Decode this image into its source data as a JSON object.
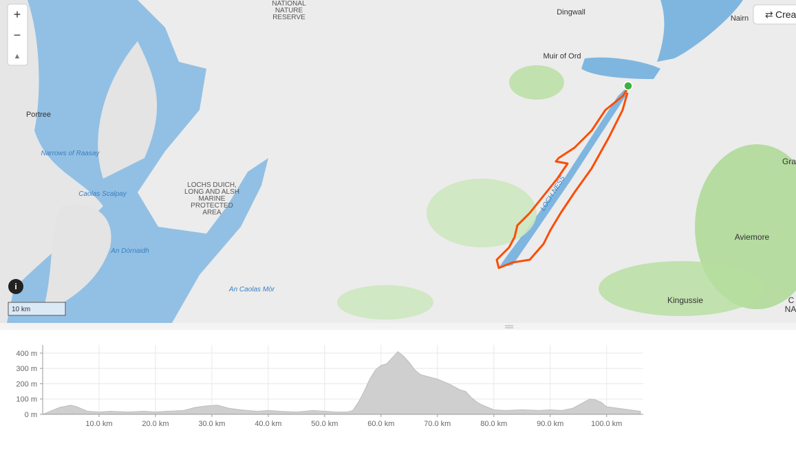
{
  "controls": {
    "zoom_in": "+",
    "zoom_out": "−",
    "compass": "▲",
    "info": "i",
    "scale": "10 km",
    "create": "Crea"
  },
  "map": {
    "labels": [
      {
        "lines": [
          "NATIONAL",
          "NATURE",
          "RESERVE"
        ]
      },
      {
        "lines": [
          "Dingwall"
        ]
      },
      {
        "lines": [
          "Nairn"
        ]
      },
      {
        "lines": [
          "Muir of Ord"
        ]
      },
      {
        "lines": [
          "Portree"
        ]
      },
      {
        "lines": [
          "Narrows of Raasay"
        ]
      },
      {
        "lines": [
          "Caolas Scalpay"
        ]
      },
      {
        "lines": [
          "LOCHS DUICH,",
          "LONG AND ALSH",
          "MARINE",
          "PROTECTED",
          "AREA"
        ]
      },
      {
        "lines": [
          "An Dòrnaidh"
        ]
      },
      {
        "lines": [
          "An Caolas Mòr"
        ]
      },
      {
        "lines": [
          "Gra"
        ]
      },
      {
        "lines": [
          "Aviemore"
        ]
      },
      {
        "lines": [
          "Kingussie"
        ]
      },
      {
        "lines": [
          "C"
        ]
      },
      {
        "lines": [
          "NA"
        ]
      },
      {
        "lines": [
          "LOCH NESS"
        ]
      }
    ]
  },
  "chart_data": {
    "type": "area",
    "color": "#cfcfcf",
    "x": [
      0,
      1,
      3,
      5,
      6,
      8,
      10,
      12,
      15,
      18,
      20,
      22,
      25,
      27,
      29,
      31,
      33,
      35,
      38,
      40,
      42,
      45,
      48,
      50,
      52,
      54,
      55,
      56,
      57,
      58,
      59,
      60,
      61,
      62,
      63,
      64,
      65,
      66,
      67,
      68,
      70,
      72,
      74,
      75,
      76,
      77,
      78,
      80,
      82,
      85,
      88,
      90,
      92,
      94,
      96,
      97,
      98,
      99,
      100,
      102,
      104,
      106
    ],
    "values": [
      0,
      15,
      45,
      60,
      50,
      20,
      15,
      20,
      15,
      20,
      15,
      20,
      25,
      45,
      55,
      60,
      40,
      30,
      20,
      25,
      20,
      15,
      25,
      20,
      15,
      15,
      25,
      80,
      150,
      230,
      290,
      320,
      330,
      370,
      410,
      380,
      340,
      290,
      260,
      250,
      230,
      200,
      160,
      150,
      110,
      80,
      60,
      30,
      25,
      30,
      25,
      30,
      25,
      40,
      80,
      100,
      95,
      80,
      50,
      40,
      30,
      20
    ],
    "xlim": [
      0,
      106.5
    ],
    "ylim": [
      0,
      440
    ],
    "xticks": [
      {
        "value": 10,
        "label": "10.0 km"
      },
      {
        "value": 20,
        "label": "20.0 km"
      },
      {
        "value": 30,
        "label": "30.0 km"
      },
      {
        "value": 40,
        "label": "40.0 km"
      },
      {
        "value": 50,
        "label": "50.0 km"
      },
      {
        "value": 60,
        "label": "60.0 km"
      },
      {
        "value": 70,
        "label": "70.0 km"
      },
      {
        "value": 80,
        "label": "80.0 km"
      },
      {
        "value": 90,
        "label": "90.0 km"
      },
      {
        "value": 100,
        "label": "100.0 km"
      }
    ],
    "yticks": [
      {
        "value": 0,
        "label": "0 m"
      },
      {
        "value": 100,
        "label": "100 m"
      },
      {
        "value": 200,
        "label": "200 m"
      },
      {
        "value": 300,
        "label": "300 m"
      },
      {
        "value": 400,
        "label": "400 m"
      }
    ],
    "grid": true
  }
}
